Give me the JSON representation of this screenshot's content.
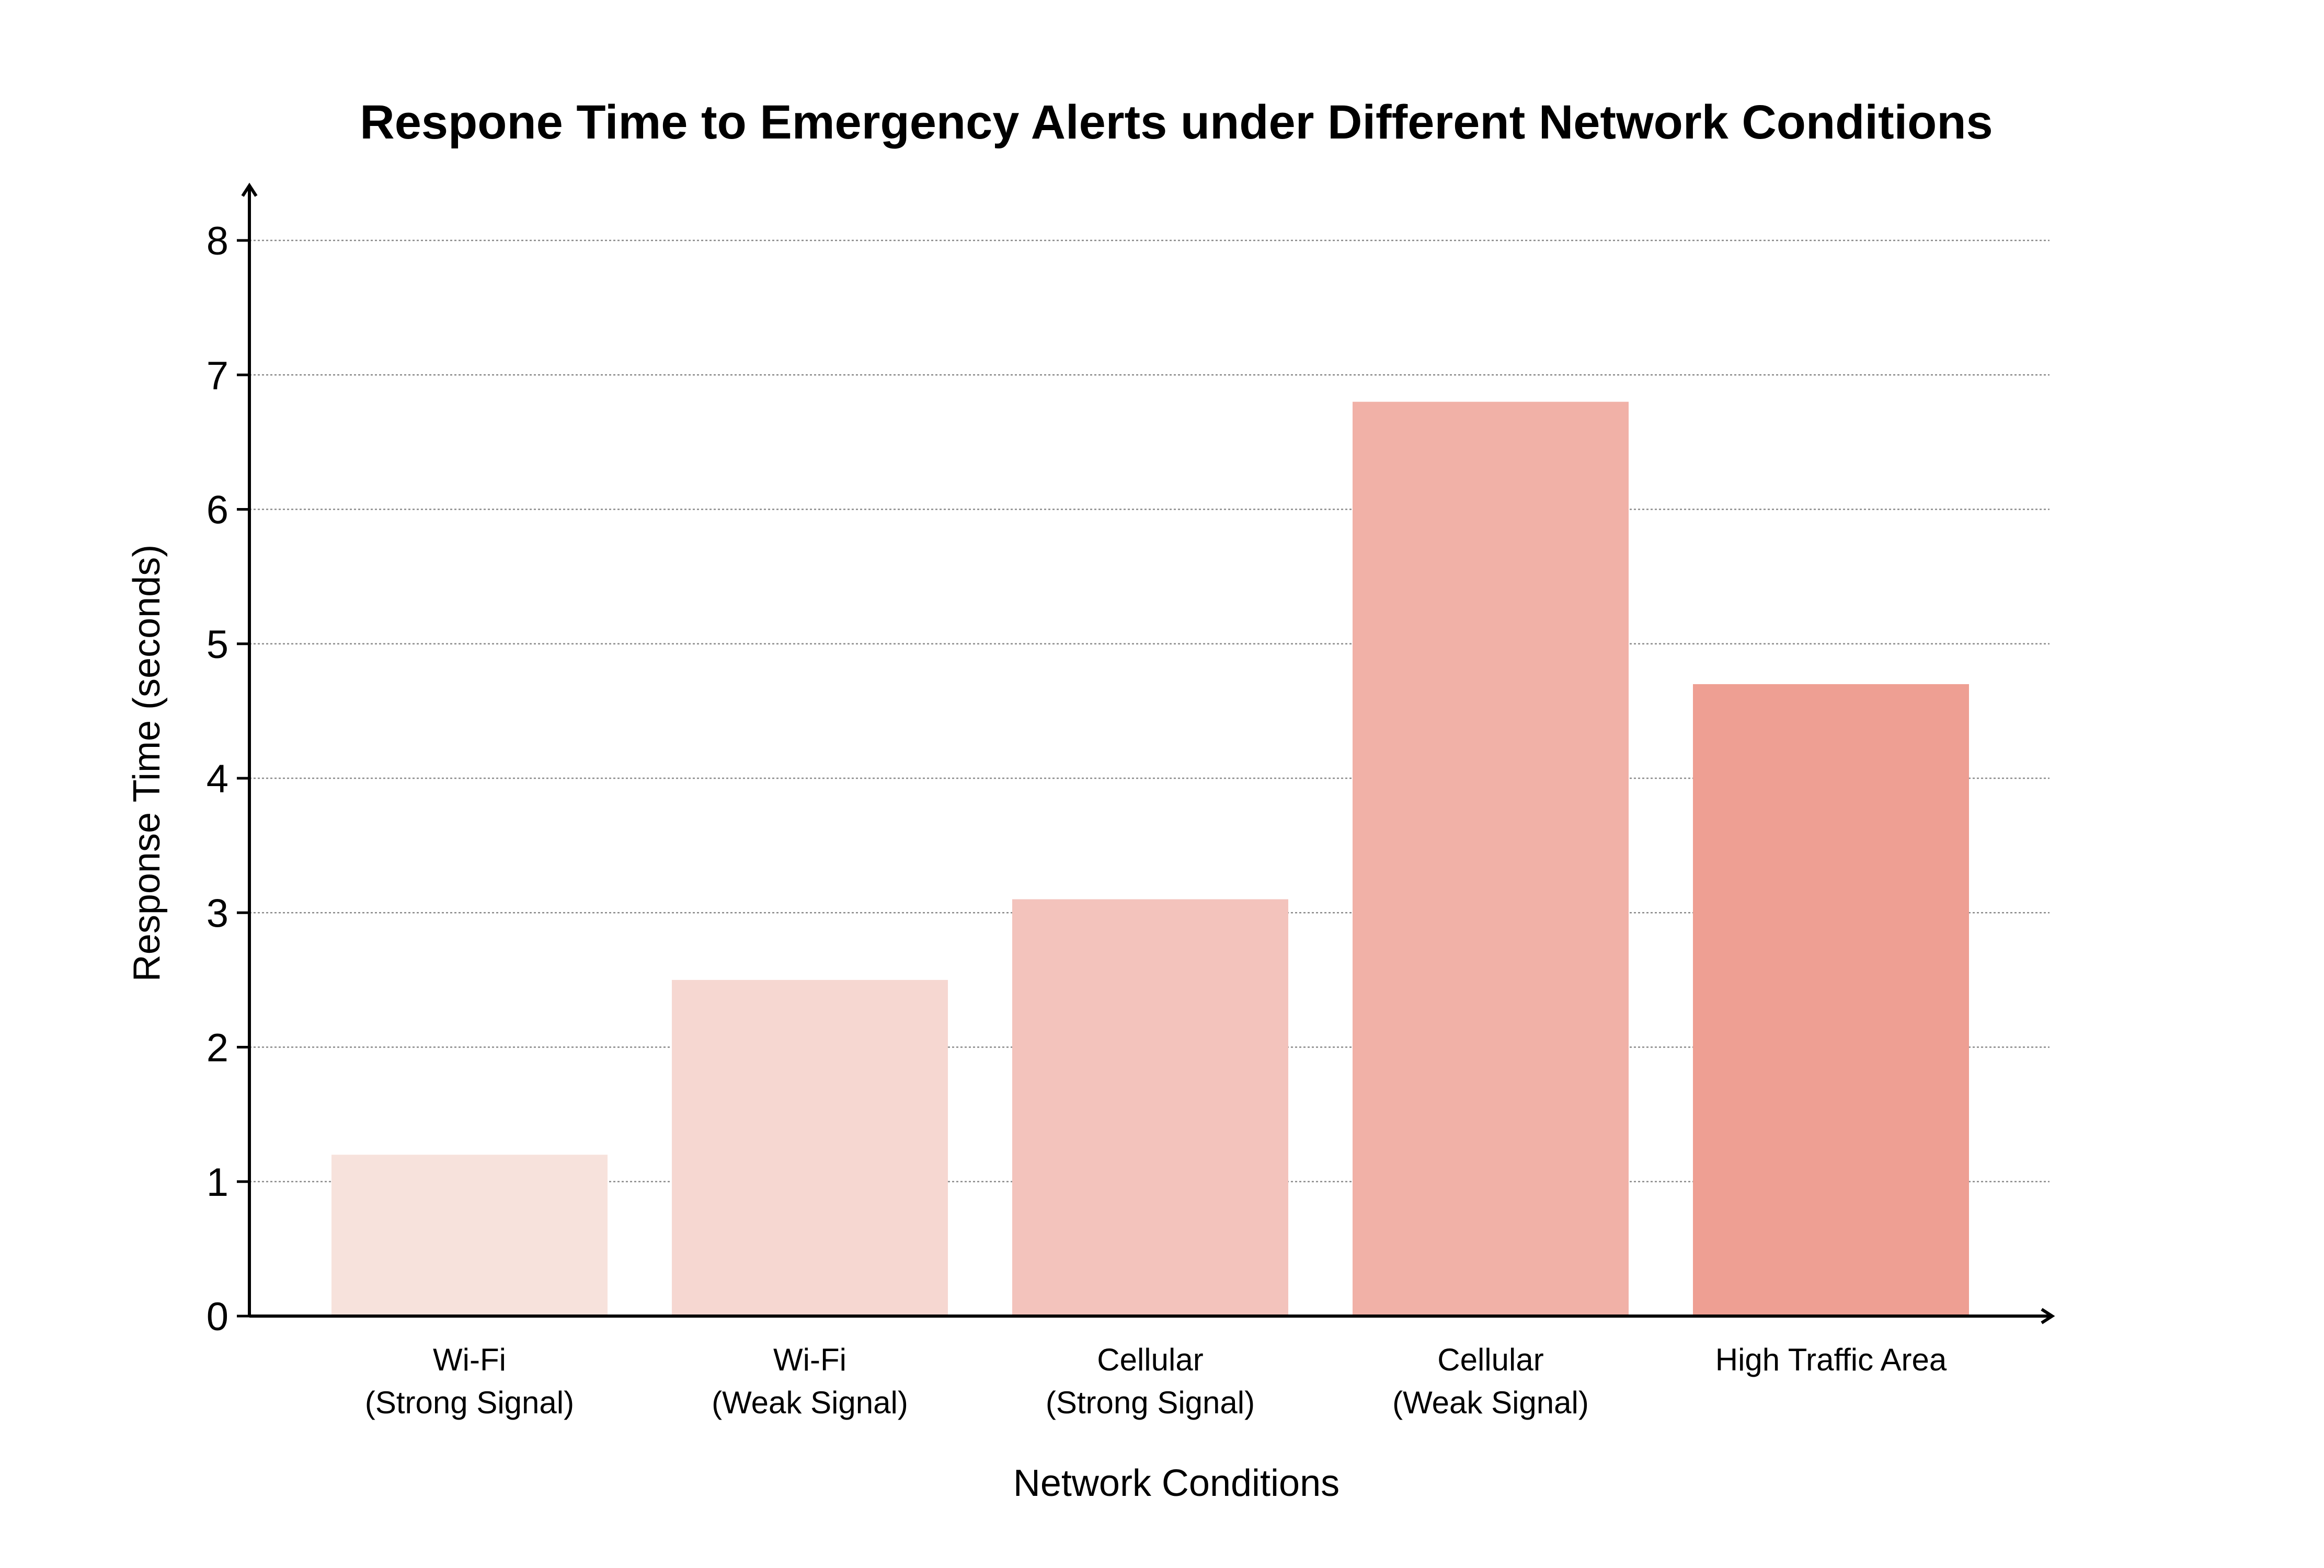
{
  "chart_data": {
    "type": "bar",
    "title": "Respone Time to Emergency Alerts under Different Network Conditions",
    "xlabel": "Network Conditions",
    "ylabel": "Response Time (seconds)",
    "categories": [
      [
        "Wi-Fi",
        "(Strong Signal)"
      ],
      [
        "Wi-Fi",
        "(Weak Signal)"
      ],
      [
        "Cellular",
        "(Strong Signal)"
      ],
      [
        "Cellular",
        "(Weak Signal)"
      ],
      [
        "High Traffic Area"
      ]
    ],
    "values": [
      1.2,
      2.5,
      3.1,
      6.8,
      4.7
    ],
    "bar_colors": [
      "#f7e2dc",
      "#f6d7d1",
      "#f3c3bc",
      "#f1b1a7",
      "#ee9f93"
    ],
    "ylim": [
      0,
      8
    ],
    "yticks": [
      "0",
      "1",
      "2",
      "3",
      "4",
      "5",
      "6",
      "7",
      "8"
    ],
    "grid": true,
    "legend": false
  }
}
